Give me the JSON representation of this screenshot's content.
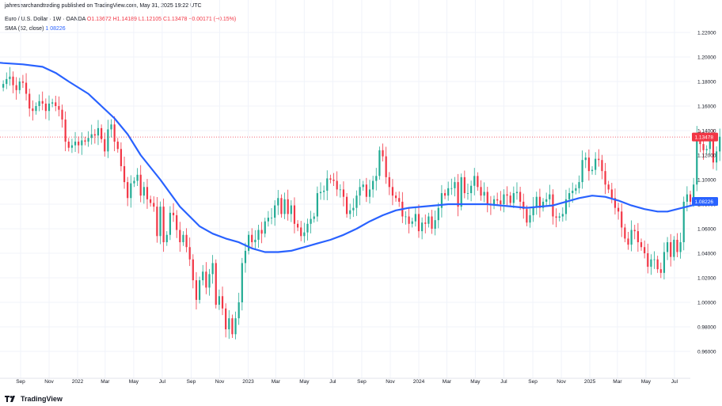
{
  "publisher": "jahresearchandtrading published on TradingView.com, May 31, 2025 19:22 UTC",
  "symbol_info": "Euro / U.S. Dollar · 1W · OANDA",
  "ohlc_text": "O1.13672  H1.14189  L1.12105  C1.13478  −0.00171 (−0.15%)",
  "sma_label": "SMA (52, close)",
  "sma_value": "1.08226",
  "footer": "TradingView",
  "colors": {
    "up": "#22ab94",
    "down": "#f23645",
    "sma": "#2962ff",
    "price_tag": "#f23645",
    "sma_tag": "#2962ff",
    "grid": "#f0f3fa",
    "text": "#131722"
  },
  "chart_data": {
    "type": "candlestick",
    "title": "Euro / U.S. Dollar · 1W · OANDA",
    "ylim": [
      0.94,
      1.23
    ],
    "y_ticks": [
      "1.22000",
      "1.20000",
      "1.18000",
      "1.16000",
      "1.14000",
      "1.12000",
      "1.10000",
      "1.08000",
      "1.06000",
      "1.04000",
      "1.02000",
      "1.00000",
      "0.98000",
      "0.96000"
    ],
    "x_ticks": [
      {
        "label": "Sep",
        "date": "2021-09-01"
      },
      {
        "label": "Nov",
        "date": "2021-11-01"
      },
      {
        "label": "2022",
        "date": "2022-01-01"
      },
      {
        "label": "Mar",
        "date": "2022-03-01"
      },
      {
        "label": "May",
        "date": "2022-05-01"
      },
      {
        "label": "Jul",
        "date": "2022-07-01"
      },
      {
        "label": "Sep",
        "date": "2022-09-01"
      },
      {
        "label": "Nov",
        "date": "2022-11-01"
      },
      {
        "label": "2023",
        "date": "2023-01-01"
      },
      {
        "label": "Mar",
        "date": "2023-03-01"
      },
      {
        "label": "May",
        "date": "2023-05-01"
      },
      {
        "label": "Jul",
        "date": "2023-07-01"
      },
      {
        "label": "Sep",
        "date": "2023-09-01"
      },
      {
        "label": "Nov",
        "date": "2023-11-01"
      },
      {
        "label": "2024",
        "date": "2024-01-01"
      },
      {
        "label": "Mar",
        "date": "2024-03-01"
      },
      {
        "label": "May",
        "date": "2024-05-01"
      },
      {
        "label": "Jul",
        "date": "2024-07-01"
      },
      {
        "label": "Sep",
        "date": "2024-09-01"
      },
      {
        "label": "Nov",
        "date": "2024-11-01"
      },
      {
        "label": "2025",
        "date": "2025-01-01"
      },
      {
        "label": "Mar",
        "date": "2025-03-01"
      },
      {
        "label": "May",
        "date": "2025-05-01"
      },
      {
        "label": "Jul",
        "date": "2025-07-01"
      }
    ],
    "x_start": "2021-07-19",
    "x_end": "2025-08-04",
    "last_price": "1.13478",
    "last_price_value": 1.13478,
    "sma_last": "1.08226",
    "sma_last_value": 1.08226,
    "weekly_closes": [
      1.178,
      1.182,
      1.184,
      1.177,
      1.173,
      1.18,
      1.179,
      1.17,
      1.158,
      1.156,
      1.16,
      1.164,
      1.162,
      1.156,
      1.162,
      1.163,
      1.16,
      1.157,
      1.149,
      1.131,
      1.126,
      1.128,
      1.131,
      1.128,
      1.132,
      1.131,
      1.134,
      1.137,
      1.136,
      1.142,
      1.133,
      1.123,
      1.141,
      1.145,
      1.131,
      1.125,
      1.111,
      1.098,
      1.085,
      1.097,
      1.099,
      1.104,
      1.087,
      1.094,
      1.084,
      1.081,
      1.078,
      1.054,
      1.078,
      1.049,
      1.055,
      1.073,
      1.071,
      1.059,
      1.049,
      1.055,
      1.045,
      1.035,
      1.018,
      1.002,
      1.018,
      1.025,
      1.012,
      1.023,
      1.032,
      0.998,
      1.005,
      0.995,
      0.978,
      0.987,
      0.974,
      0.987,
      1.0,
      1.032,
      1.042,
      1.055,
      1.049,
      1.051,
      1.059,
      1.056,
      1.066,
      1.069,
      1.069,
      1.079,
      1.085,
      1.072,
      1.084,
      1.072,
      1.079,
      1.064,
      1.061,
      1.054,
      1.057,
      1.064,
      1.068,
      1.07,
      1.089,
      1.09,
      1.091,
      1.101,
      1.1,
      1.099,
      1.092,
      1.092,
      1.086,
      1.072,
      1.075,
      1.077,
      1.087,
      1.094,
      1.096,
      1.086,
      1.092,
      1.099,
      1.103,
      1.124,
      1.119,
      1.102,
      1.094,
      1.087,
      1.085,
      1.082,
      1.07,
      1.07,
      1.064,
      1.066,
      1.072,
      1.058,
      1.065,
      1.064,
      1.07,
      1.06,
      1.067,
      1.077,
      1.089,
      1.087,
      1.093,
      1.093,
      1.098,
      1.078,
      1.102,
      1.089,
      1.089,
      1.095,
      1.103,
      1.094,
      1.087,
      1.09,
      1.08,
      1.079,
      1.084,
      1.083,
      1.08,
      1.088,
      1.087,
      1.081,
      1.089,
      1.09,
      1.082,
      1.076,
      1.065,
      1.071,
      1.078,
      1.086,
      1.077,
      1.082,
      1.084,
      1.088,
      1.07,
      1.069,
      1.07,
      1.072,
      1.084,
      1.089,
      1.091,
      1.093,
      1.098,
      1.116,
      1.118,
      1.107,
      1.108,
      1.117,
      1.116,
      1.107,
      1.096,
      1.092,
      1.085,
      1.077,
      1.074,
      1.061,
      1.052,
      1.047,
      1.059,
      1.058,
      1.049,
      1.045,
      1.04,
      1.029,
      1.035,
      1.035,
      1.027,
      1.024,
      1.041,
      1.049,
      1.037,
      1.051,
      1.041,
      1.049,
      1.082,
      1.088,
      1.082,
      1.096,
      1.136,
      1.129,
      1.124,
      1.125,
      1.133,
      1.114,
      1.123,
      1.135,
      1.135
    ],
    "sma_52": [
      [
        -8,
        1.196
      ],
      [
        -4,
        1.196
      ],
      [
        0,
        1.195
      ],
      [
        6,
        1.194
      ],
      [
        12,
        1.192
      ],
      [
        16,
        1.187
      ],
      [
        20,
        1.18
      ],
      [
        26,
        1.17
      ],
      [
        30,
        1.16
      ],
      [
        34,
        1.15
      ],
      [
        38,
        1.137
      ],
      [
        42,
        1.12
      ],
      [
        48,
        1.1
      ],
      [
        54,
        1.078
      ],
      [
        60,
        1.062
      ],
      [
        64,
        1.056
      ],
      [
        68,
        1.052
      ],
      [
        72,
        1.049
      ],
      [
        76,
        1.044
      ],
      [
        80,
        1.041
      ],
      [
        84,
        1.041
      ],
      [
        88,
        1.042
      ],
      [
        92,
        1.045
      ],
      [
        96,
        1.048
      ],
      [
        100,
        1.051
      ],
      [
        104,
        1.055
      ],
      [
        108,
        1.06
      ],
      [
        112,
        1.066
      ],
      [
        116,
        1.071
      ],
      [
        120,
        1.075
      ],
      [
        124,
        1.077
      ],
      [
        128,
        1.078
      ],
      [
        132,
        1.079
      ],
      [
        136,
        1.08
      ],
      [
        140,
        1.08
      ],
      [
        144,
        1.08
      ],
      [
        148,
        1.08
      ],
      [
        152,
        1.079
      ],
      [
        156,
        1.078
      ],
      [
        160,
        1.077
      ],
      [
        164,
        1.078
      ],
      [
        168,
        1.079
      ],
      [
        172,
        1.082
      ],
      [
        176,
        1.085
      ],
      [
        180,
        1.087
      ],
      [
        184,
        1.086
      ],
      [
        188,
        1.083
      ],
      [
        192,
        1.079
      ],
      [
        196,
        1.076
      ],
      [
        200,
        1.074
      ],
      [
        203,
        1.074
      ],
      [
        206,
        1.076
      ],
      [
        209,
        1.078
      ],
      [
        212,
        1.08
      ],
      [
        214,
        1.082
      ]
    ],
    "series": [
      {
        "name": "EUR/USD weekly OHLC (OANDA)"
      },
      {
        "name": "SMA (52, close)"
      }
    ]
  }
}
